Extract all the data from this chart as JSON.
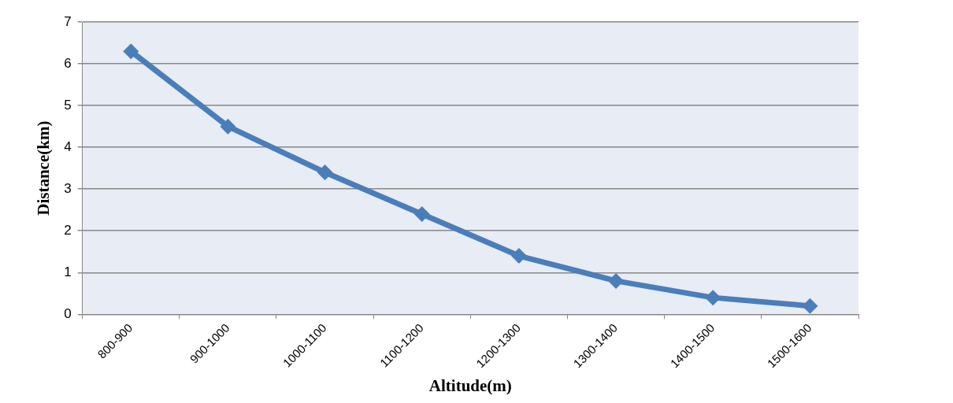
{
  "chart_data": {
    "type": "line",
    "xlabel": "Altitude(m)",
    "ylabel": "Distance(km)",
    "categories": [
      "800-900",
      "900-1000",
      "1000-1100",
      "1100-1200",
      "1200-1300",
      "1300-1400",
      "1400-1500",
      "1500-1600"
    ],
    "series": [
      {
        "color": "#4a7ebb",
        "values": [
          6.3,
          4.5,
          3.4,
          2.4,
          1.4,
          0.8,
          0.4,
          0.2
        ]
      }
    ],
    "ylim": [
      0,
      7
    ],
    "yticks": [
      0,
      1,
      2,
      3,
      4,
      5,
      6,
      7
    ],
    "grid": "y",
    "legend": false,
    "marker": "diamond",
    "line_style": "solid"
  }
}
